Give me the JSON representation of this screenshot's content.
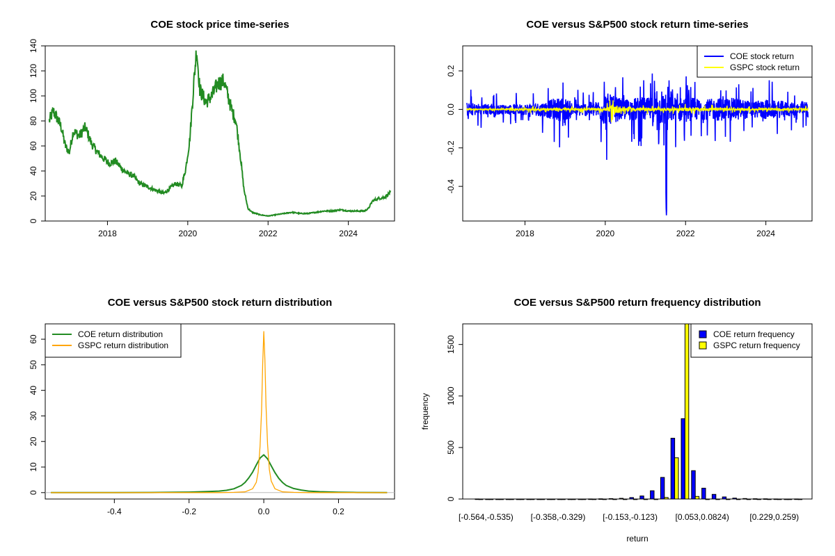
{
  "chart_data": [
    {
      "id": "price",
      "type": "line",
      "title": "COE stock price time-series",
      "xlabel": "",
      "ylabel": "",
      "x_ticks": [
        "2018",
        "2020",
        "2022",
        "2024"
      ],
      "y_ticks": [
        "0",
        "20",
        "40",
        "60",
        "80",
        "100",
        "120",
        "140"
      ],
      "xlim": [
        2016.45,
        2025.15
      ],
      "ylim": [
        0,
        140
      ],
      "grid": false,
      "series": [
        {
          "color": "#228B22",
          "x": [
            2016.55,
            2016.65,
            2016.75,
            2016.85,
            2016.95,
            2017.05,
            2017.15,
            2017.3,
            2017.45,
            2017.6,
            2017.75,
            2017.9,
            2018.05,
            2018.2,
            2018.35,
            2018.5,
            2018.65,
            2018.8,
            2018.95,
            2019.1,
            2019.25,
            2019.4,
            2019.55,
            2019.7,
            2019.85,
            2019.95,
            2020.05,
            2020.15,
            2020.22,
            2020.3,
            2020.45,
            2020.6,
            2020.75,
            2020.9,
            2021.0,
            2021.1,
            2021.2,
            2021.3,
            2021.4,
            2021.5,
            2021.6,
            2021.8,
            2022.0,
            2022.2,
            2022.4,
            2022.6,
            2022.8,
            2023.0,
            2023.2,
            2023.4,
            2023.6,
            2023.8,
            2024.0,
            2024.2,
            2024.4,
            2024.5,
            2024.6,
            2024.75,
            2024.9,
            2025.05
          ],
          "y": [
            80,
            88,
            82,
            75,
            60,
            55,
            72,
            68,
            75,
            62,
            55,
            50,
            46,
            48,
            42,
            38,
            36,
            30,
            28,
            26,
            24,
            22,
            26,
            30,
            28,
            42,
            65,
            110,
            138,
            105,
            95,
            100,
            110,
            112,
            100,
            88,
            80,
            55,
            25,
            10,
            7,
            5,
            4,
            5,
            6,
            7,
            6,
            6,
            7,
            8,
            8,
            9,
            8,
            8,
            8,
            10,
            16,
            18,
            19,
            23
          ]
        }
      ]
    },
    {
      "id": "returns",
      "type": "line",
      "title": "COE versus S&P500 stock return time-series",
      "xlabel": "",
      "ylabel": "",
      "x_ticks": [
        "2018",
        "2020",
        "2022",
        "2024"
      ],
      "y_ticks": [
        "-0.4",
        "-0.2",
        "0.0",
        "0.2"
      ],
      "xlim": [
        2016.45,
        2025.15
      ],
      "ylim": [
        -0.58,
        0.33
      ],
      "grid": false,
      "legend": {
        "position": "top-right",
        "entries": [
          {
            "label": "COE stock return",
            "color": "#0000FF"
          },
          {
            "label": "GSPC stock return",
            "color": "#FFFF00"
          }
        ]
      },
      "series": [
        {
          "name": "COE stock return",
          "color": "#0000FF",
          "x": [
            2016.55,
            2016.9,
            2017.2,
            2017.5,
            2017.8,
            2018.1,
            2018.4,
            2018.7,
            2018.95,
            2019.2,
            2019.5,
            2019.8,
            2020.0,
            2020.15,
            2020.35,
            2020.6,
            2020.85,
            2021.1,
            2021.3,
            2021.5,
            2021.52,
            2021.6,
            2021.8,
            2022.0,
            2022.2,
            2022.4,
            2022.6,
            2022.8,
            2023.0,
            2023.2,
            2023.4,
            2023.6,
            2023.8,
            2024.0,
            2024.2,
            2024.4,
            2024.6,
            2024.8,
            2025.05
          ],
          "amp": [
            0.12,
            0.1,
            0.1,
            0.08,
            0.09,
            0.1,
            0.12,
            0.18,
            0.22,
            0.12,
            0.12,
            0.14,
            0.3,
            0.25,
            0.2,
            0.18,
            0.22,
            0.2,
            0.25,
            0.3,
            0.56,
            0.25,
            0.2,
            0.22,
            0.2,
            0.18,
            0.18,
            0.2,
            0.2,
            0.2,
            0.18,
            0.15,
            0.15,
            0.18,
            0.15,
            0.15,
            0.12,
            0.12,
            0.15
          ]
        },
        {
          "name": "GSPC stock return",
          "color": "#FFFF00",
          "x": [
            2016.55,
            2017.5,
            2018.0,
            2018.5,
            2019.0,
            2019.5,
            2020.0,
            2020.2,
            2020.4,
            2020.8,
            2021.5,
            2022.0,
            2022.5,
            2023.0,
            2023.5,
            2024.0,
            2024.5,
            2025.05
          ],
          "amp": [
            0.01,
            0.01,
            0.02,
            0.025,
            0.02,
            0.02,
            0.02,
            0.09,
            0.05,
            0.03,
            0.02,
            0.03,
            0.03,
            0.02,
            0.02,
            0.015,
            0.02,
            0.02
          ]
        }
      ]
    },
    {
      "id": "density",
      "type": "line",
      "title": "COE versus S&P500 stock return distribution",
      "xlabel": "",
      "ylabel": "",
      "x_ticks": [
        "-0.4",
        "-0.2",
        "0.0",
        "0.2"
      ],
      "y_ticks": [
        "0",
        "10",
        "20",
        "30",
        "40",
        "50",
        "60"
      ],
      "xlim": [
        -0.585,
        0.35
      ],
      "ylim": [
        -2.5,
        66
      ],
      "grid": false,
      "legend": {
        "position": "top-left",
        "entries": [
          {
            "label": "COE return distribution",
            "color": "#228B22"
          },
          {
            "label": "GSPC return distribution",
            "color": "#FFA500"
          }
        ]
      },
      "series": [
        {
          "name": "COE return distribution",
          "color": "#228B22",
          "x": [
            -0.57,
            -0.4,
            -0.3,
            -0.2,
            -0.15,
            -0.12,
            -0.1,
            -0.08,
            -0.06,
            -0.05,
            -0.04,
            -0.03,
            -0.02,
            -0.01,
            0.0,
            0.01,
            0.02,
            0.03,
            0.04,
            0.05,
            0.06,
            0.08,
            0.1,
            0.12,
            0.15,
            0.2,
            0.25,
            0.33
          ],
          "y": [
            0,
            0,
            0.05,
            0.2,
            0.4,
            0.6,
            0.9,
            1.5,
            2.8,
            4.0,
            5.8,
            8.0,
            10.8,
            13.5,
            14.8,
            13.2,
            10.5,
            7.8,
            5.6,
            4.0,
            2.8,
            1.6,
            1.0,
            0.6,
            0.35,
            0.15,
            0.05,
            0
          ]
        },
        {
          "name": "GSPC return distribution",
          "color": "#FFA500",
          "x": [
            -0.57,
            -0.12,
            -0.08,
            -0.05,
            -0.03,
            -0.02,
            -0.015,
            -0.01,
            -0.006,
            -0.003,
            0.0,
            0.003,
            0.006,
            0.01,
            0.015,
            0.02,
            0.03,
            0.05,
            0.08,
            0.12,
            0.33
          ],
          "y": [
            0,
            0,
            0.1,
            0.3,
            1.5,
            4.0,
            8.0,
            18.0,
            32.0,
            50.0,
            63.0,
            52.0,
            34.0,
            19.0,
            9.0,
            4.5,
            1.5,
            0.3,
            0.1,
            0,
            0
          ]
        }
      ]
    },
    {
      "id": "hist",
      "type": "bar",
      "title": "COE versus S&P500 return frequency distribution",
      "xlabel": "return",
      "ylabel": "frequency",
      "category_labels": [
        "[-0.564,-0.535)",
        "[-0.358,-0.329)",
        "[-0.153,-0.123)",
        "[0.053,0.0824)",
        "[0.229,0.259)"
      ],
      "y_ticks": [
        "0",
        "500",
        "1000",
        "1500"
      ],
      "ylim": [
        0,
        1700
      ],
      "grid": false,
      "legend": {
        "position": "top-right",
        "entries": [
          {
            "label": "COE return frequency",
            "color": "#0000FF"
          },
          {
            "label": "GSPC return frequency",
            "color": "#FFFF00"
          }
        ]
      },
      "series": [
        {
          "name": "COE return frequency",
          "color": "#0000FF",
          "values": [
            1,
            0,
            0,
            0,
            0,
            0,
            0,
            0,
            0,
            0,
            0,
            1,
            2,
            4,
            7,
            14,
            30,
            80,
            210,
            590,
            780,
            275,
            105,
            45,
            20,
            9,
            5,
            3,
            2,
            1,
            0,
            1
          ]
        },
        {
          "name": "GSPC return frequency",
          "color": "#FFFF00",
          "values": [
            0,
            0,
            0,
            0,
            0,
            0,
            0,
            0,
            0,
            0,
            0,
            0,
            0,
            0,
            0,
            0,
            0,
            0,
            15,
            400,
            1700,
            25,
            0,
            0,
            0,
            0,
            0,
            0,
            0,
            0,
            0,
            0
          ]
        }
      ]
    }
  ]
}
